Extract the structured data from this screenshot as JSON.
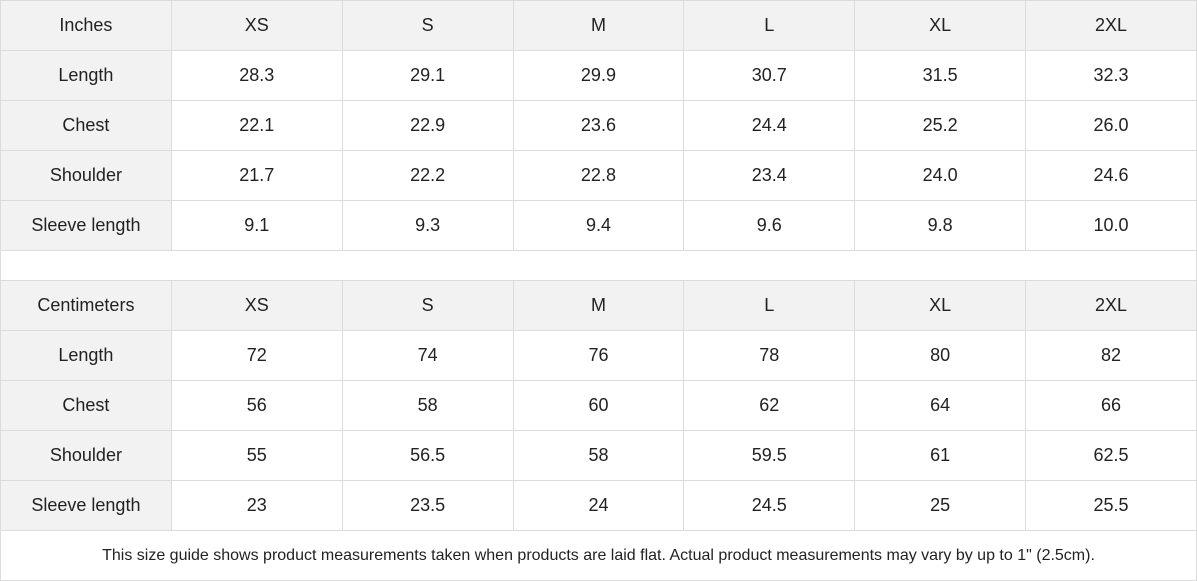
{
  "tables": [
    {
      "unit": "Inches",
      "sizes": [
        "XS",
        "S",
        "M",
        "L",
        "XL",
        "2XL"
      ],
      "rows": [
        {
          "label": "Length",
          "values": [
            "28.3",
            "29.1",
            "29.9",
            "30.7",
            "31.5",
            "32.3"
          ]
        },
        {
          "label": "Chest",
          "values": [
            "22.1",
            "22.9",
            "23.6",
            "24.4",
            "25.2",
            "26.0"
          ]
        },
        {
          "label": "Shoulder",
          "values": [
            "21.7",
            "22.2",
            "22.8",
            "23.4",
            "24.0",
            "24.6"
          ]
        },
        {
          "label": "Sleeve length",
          "values": [
            "9.1",
            "9.3",
            "9.4",
            "9.6",
            "9.8",
            "10.0"
          ]
        }
      ]
    },
    {
      "unit": "Centimeters",
      "sizes": [
        "XS",
        "S",
        "M",
        "L",
        "XL",
        "2XL"
      ],
      "rows": [
        {
          "label": "Length",
          "values": [
            "72",
            "74",
            "76",
            "78",
            "80",
            "82"
          ]
        },
        {
          "label": "Chest",
          "values": [
            "56",
            "58",
            "60",
            "62",
            "64",
            "66"
          ]
        },
        {
          "label": "Shoulder",
          "values": [
            "55",
            "56.5",
            "58",
            "59.5",
            "61",
            "62.5"
          ]
        },
        {
          "label": "Sleeve length",
          "values": [
            "23",
            "23.5",
            "24",
            "24.5",
            "25",
            "25.5"
          ]
        }
      ]
    }
  ],
  "note": "This size guide shows product measurements taken when products are laid flat.  Actual product measurements may vary by up to 1\" (2.5cm)."
}
